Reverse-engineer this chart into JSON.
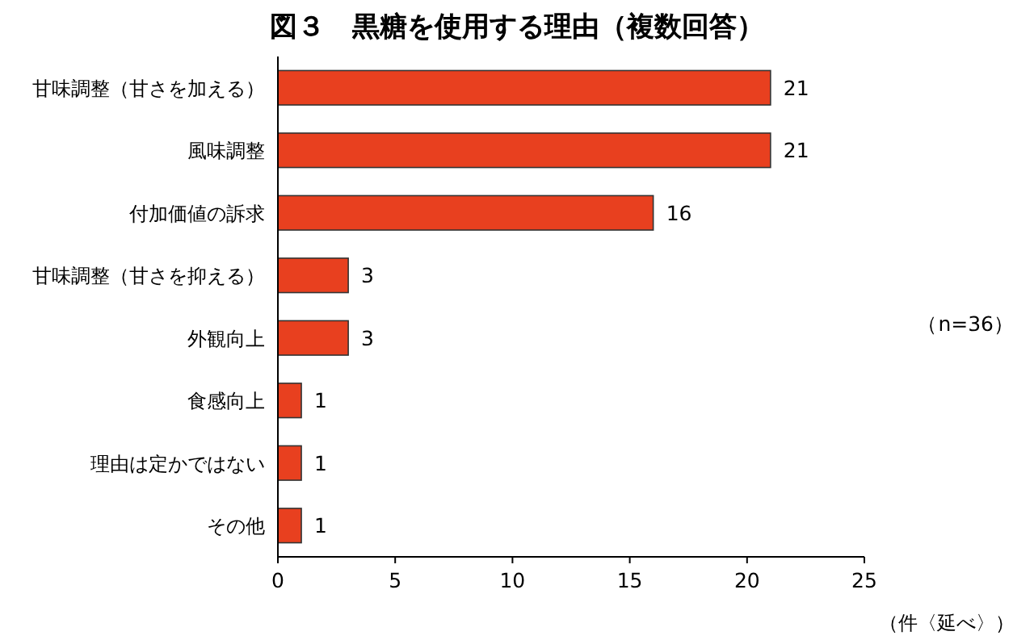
{
  "chart_data": {
    "type": "bar",
    "orientation": "horizontal",
    "title": "図３　黒糖を使用する理由（複数回答）",
    "xlabel": "（件〈延べ〉）",
    "categories": [
      "甘味調整（甘さを加える）",
      "風味調整",
      "付加価値の訴求",
      "甘味調整（甘さを抑える）",
      "外観向上",
      "食感向上",
      "理由は定かではない",
      "その他"
    ],
    "values": [
      21,
      21,
      16,
      3,
      3,
      1,
      1,
      1
    ],
    "color": "#e8401f",
    "xlim": [
      0,
      25
    ],
    "xticks": [
      0,
      5,
      10,
      15,
      20,
      25
    ],
    "data_labels": true,
    "grid": false,
    "annotations": [
      "（n=36）"
    ]
  }
}
